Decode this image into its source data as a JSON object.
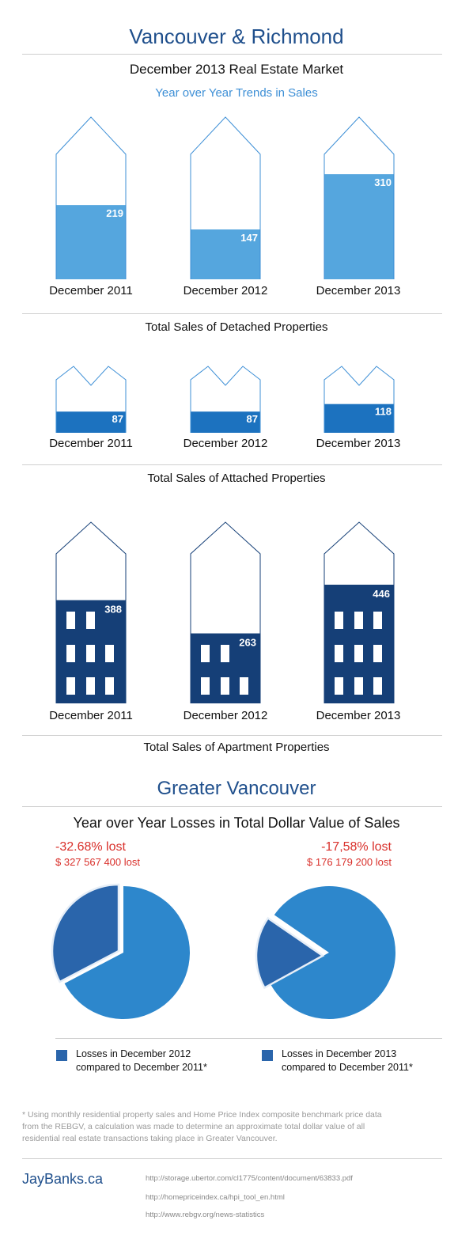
{
  "header": {
    "title": "Vancouver & Richmond",
    "subtitle": "December 2013 Real Estate Market",
    "sub_subtitle": "Year over Year Trends in Sales"
  },
  "colors": {
    "brand_blue": "#1f4f8c",
    "detached_fill": "#55a6de",
    "attached_fill": "#1c72bf",
    "apartment_fill": "#153f77",
    "outline": "#3d8fd6",
    "loss_red": "#d9302b",
    "pie_main": "#2d87cc",
    "pie_slice": "#2a65ab"
  },
  "chart_data": [
    {
      "type": "bar",
      "title": "Total Sales of Detached Properties",
      "categories": [
        "December 2011",
        "December 2012",
        "December 2013"
      ],
      "values": [
        219,
        147,
        310
      ]
    },
    {
      "type": "bar",
      "title": "Total Sales of Attached Properties",
      "categories": [
        "December 2011",
        "December 2012",
        "December 2013"
      ],
      "values": [
        87,
        87,
        118
      ]
    },
    {
      "type": "bar",
      "title": "Total Sales of Apartment Properties",
      "categories": [
        "December 2011",
        "December 2012",
        "December 2013"
      ],
      "values": [
        388,
        263,
        446
      ]
    },
    {
      "type": "pie",
      "title": "Year over Year Losses in Total Dollar Value of Sales",
      "pies": [
        {
          "loss_percent_label": "-32.68% lost",
          "loss_amount_label": "$ 327 567 400 lost",
          "loss_fraction": 0.3268,
          "legend": [
            "Losses in December 2012",
            "compared to December 2011*"
          ]
        },
        {
          "loss_percent_label": "-17,58% lost",
          "loss_amount_label": "$ 176 179 200 lost",
          "loss_fraction": 0.1758,
          "legend": [
            "Losses in December 2013",
            "compared to December 2011*"
          ]
        }
      ]
    }
  ],
  "greater_vancouver": {
    "title": "Greater Vancouver",
    "subtitle": "Year over Year Losses in Total Dollar Value of Sales"
  },
  "footnote": "* Using monthly residential property sales and Home Price Index composite benchmark price data from the REBGV, a calculation was made to determine an approximate total dollar value of all residential real estate transactions taking place in Greater Vancouver.",
  "footer": {
    "brand": "JayBanks.ca",
    "sources": [
      "http://storage.ubertor.com/cl1775/content/document/63833.pdf",
      "http://homepriceindex.ca/hpi_tool_en.html",
      "http://www.rebgv.org/news-statistics"
    ]
  }
}
